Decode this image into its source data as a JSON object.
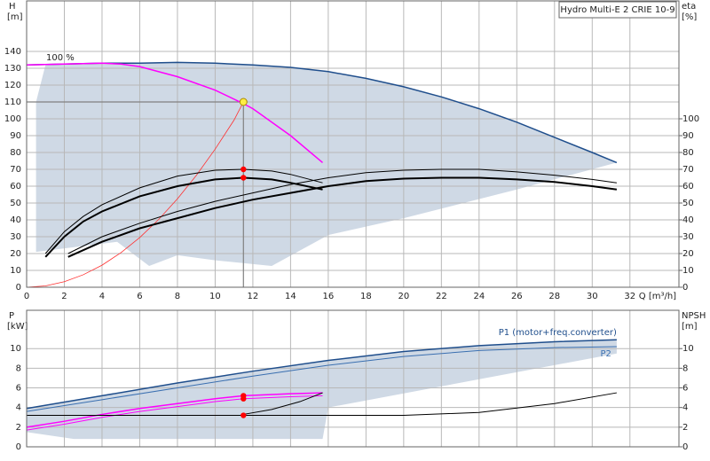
{
  "chart_data": [
    {
      "type": "line",
      "title": "Hydro Multi-E 2 CRIE 10-9",
      "ylabel": "H",
      "yunit": "[m]",
      "y2label": "eta",
      "y2unit": "[%]",
      "xlabel": "Q [m³/h]",
      "annotation": "100 %",
      "xlim": [
        0,
        34.6
      ],
      "ylim": [
        0,
        170
      ],
      "y2lim": [
        0,
        170
      ],
      "xticks": [
        0,
        2,
        4,
        6,
        8,
        10,
        12,
        14,
        16,
        18,
        20,
        22,
        24,
        26,
        28,
        30,
        32
      ],
      "yticks": [
        0,
        10,
        20,
        30,
        40,
        50,
        60,
        70,
        80,
        90,
        100,
        110,
        120,
        130,
        140
      ],
      "y2ticks": [
        0,
        10,
        20,
        30,
        40,
        50,
        60,
        70,
        80,
        90,
        100
      ],
      "grid": true,
      "xtick_labels": true,
      "area": {
        "color": "#cfd9e5",
        "x": [
          1,
          2,
          4,
          6,
          8,
          10,
          12,
          14,
          16,
          18,
          20,
          22,
          24,
          26,
          28,
          30,
          31.3,
          26,
          20,
          16,
          13,
          10,
          8,
          6.5,
          4.8,
          0.5,
          0.5
        ],
        "values": [
          132,
          132.5,
          133,
          133,
          133.5,
          133,
          132,
          130.5,
          128,
          124,
          119,
          113,
          106,
          98,
          89,
          80,
          74,
          58,
          41,
          31,
          12.6,
          16,
          19,
          12.6,
          27,
          21,
          110
        ]
      },
      "series": [
        {
          "color": "#1f4e8c",
          "width": 1.5,
          "x": [
            0,
            2,
            4,
            6,
            8,
            10,
            12,
            14,
            16,
            18,
            20,
            22,
            24,
            26,
            28,
            30,
            31.3
          ],
          "values": [
            132,
            132.5,
            133,
            133,
            133.5,
            133,
            132,
            130.5,
            128,
            124,
            119,
            113,
            106,
            98,
            89,
            80,
            74
          ]
        },
        {
          "color": "#ff00ff",
          "width": 1.5,
          "x": [
            0,
            2,
            4,
            5,
            6,
            8,
            10,
            11.5,
            12,
            14,
            15.7
          ],
          "values": [
            132,
            132.5,
            133,
            132.5,
            131,
            125,
            117,
            109,
            106,
            90,
            74
          ]
        },
        {
          "color": "#ff3030",
          "width": 0.8,
          "x": [
            0,
            1,
            2,
            3,
            4,
            5,
            6,
            7,
            8,
            9,
            10,
            11,
            11.5
          ],
          "values": [
            0,
            0.8,
            3.3,
            7.4,
            13.1,
            20.5,
            29.5,
            40.2,
            52.5,
            66.4,
            82,
            99.2,
            110
          ]
        },
        {
          "color": "#000000",
          "width": 1,
          "axis": "y2",
          "x": [
            1,
            2,
            3,
            4,
            6,
            8,
            10,
            11.5,
            13,
            14,
            15.7
          ],
          "values": [
            20,
            33,
            42,
            49,
            59,
            66,
            69.5,
            70,
            69,
            67,
            62
          ]
        },
        {
          "color": "#000000",
          "width": 2,
          "axis": "y2",
          "x": [
            1,
            2,
            3,
            4,
            6,
            8,
            10,
            11.5,
            13,
            14,
            15.7
          ],
          "values": [
            18,
            30,
            39,
            45,
            54,
            60,
            64,
            65,
            64,
            62,
            58
          ]
        },
        {
          "color": "#000000",
          "width": 1,
          "axis": "y2",
          "x": [
            2.2,
            4,
            6,
            8,
            10,
            12,
            14,
            16,
            18,
            20,
            22,
            24,
            26,
            28,
            30,
            31.3
          ],
          "values": [
            20,
            30,
            38,
            45,
            51,
            56,
            61,
            65,
            68,
            69.5,
            70,
            70,
            68.5,
            66.5,
            64,
            62
          ]
        },
        {
          "color": "#000000",
          "width": 2,
          "axis": "y2",
          "x": [
            2.2,
            4,
            6,
            8,
            10,
            12,
            14,
            16,
            18,
            20,
            22,
            24,
            26,
            28,
            30,
            31.3
          ],
          "values": [
            18,
            27,
            35,
            41,
            47,
            52,
            56,
            60,
            63,
            64.5,
            65,
            65,
            64,
            62.5,
            60,
            58
          ]
        }
      ],
      "duty_point": {
        "x": 11.5,
        "y": 110,
        "color": "#ffee44",
        "line_color": "#808080"
      },
      "points": {
        "color": "#ff0000",
        "axis": "y2",
        "x": [
          11.5,
          11.5
        ],
        "values": [
          70,
          65
        ]
      }
    },
    {
      "type": "line",
      "ylabel": "P",
      "yunit": "[kW]",
      "y2label": "NPSH",
      "y2unit": "[m]",
      "xlim": [
        0,
        34.6
      ],
      "ylim": [
        0,
        13.9
      ],
      "y2lim": [
        0,
        13.9
      ],
      "xticks": [
        0,
        2,
        4,
        6,
        8,
        10,
        12,
        14,
        16,
        18,
        20,
        22,
        24,
        26,
        28,
        30,
        32
      ],
      "yticks": [
        0,
        2,
        4,
        6,
        8,
        10
      ],
      "y2ticks": [
        0,
        2,
        4,
        6,
        8,
        10
      ],
      "grid": true,
      "xtick_labels": false,
      "area": {
        "color": "#cfd9e5",
        "x": [
          0,
          4,
          8,
          12,
          16,
          20,
          24,
          28,
          31.3,
          31.3,
          16,
          15.7,
          2.5,
          0
        ],
        "values": [
          3.9,
          5.2,
          6.5,
          7.7,
          8.8,
          9.7,
          10.3,
          10.7,
          10.9,
          9.5,
          4,
          0.8,
          0.8,
          1.5
        ]
      },
      "series": [
        {
          "name": "P1 (motor+freq.converter)",
          "color": "#1f4e8c",
          "width": 1.5,
          "x": [
            0,
            4,
            8,
            12,
            16,
            20,
            24,
            28,
            31.3
          ],
          "values": [
            3.9,
            5.2,
            6.5,
            7.7,
            8.8,
            9.7,
            10.3,
            10.7,
            10.9
          ]
        },
        {
          "name": "P2",
          "color": "#3a6fb0",
          "width": 1,
          "x": [
            0,
            4,
            8,
            12,
            16,
            20,
            24,
            28,
            31.3
          ],
          "values": [
            3.6,
            4.8,
            6.0,
            7.2,
            8.3,
            9.2,
            9.8,
            10.1,
            10.2
          ]
        },
        {
          "color": "#ff00ff",
          "width": 1.5,
          "x": [
            0,
            2,
            4,
            6,
            8,
            10,
            11.5,
            14,
            15.7
          ],
          "values": [
            2.0,
            2.6,
            3.3,
            3.9,
            4.4,
            4.9,
            5.2,
            5.4,
            5.5
          ]
        },
        {
          "color": "#ff00ff",
          "width": 1,
          "x": [
            0,
            2,
            4,
            6,
            8,
            10,
            11.5,
            14,
            15.7
          ],
          "values": [
            1.7,
            2.3,
            3.0,
            3.6,
            4.1,
            4.6,
            4.9,
            5.1,
            5.2
          ]
        },
        {
          "color": "#000000",
          "width": 1,
          "axis": "y2",
          "x": [
            0,
            5,
            10,
            15,
            20,
            24,
            28,
            31.3
          ],
          "values": [
            3.2,
            3.2,
            3.2,
            3.2,
            3.2,
            3.5,
            4.4,
            5.5
          ]
        },
        {
          "color": "#000000",
          "width": 1,
          "axis": "y2",
          "x": [
            11.5,
            13,
            14.5,
            15.7
          ],
          "values": [
            3.3,
            3.8,
            4.6,
            5.5
          ]
        }
      ],
      "points": {
        "color": "#ff0000",
        "x": [
          11.5,
          11.5,
          11.5
        ],
        "values": [
          5.2,
          4.9,
          3.2
        ]
      }
    }
  ]
}
